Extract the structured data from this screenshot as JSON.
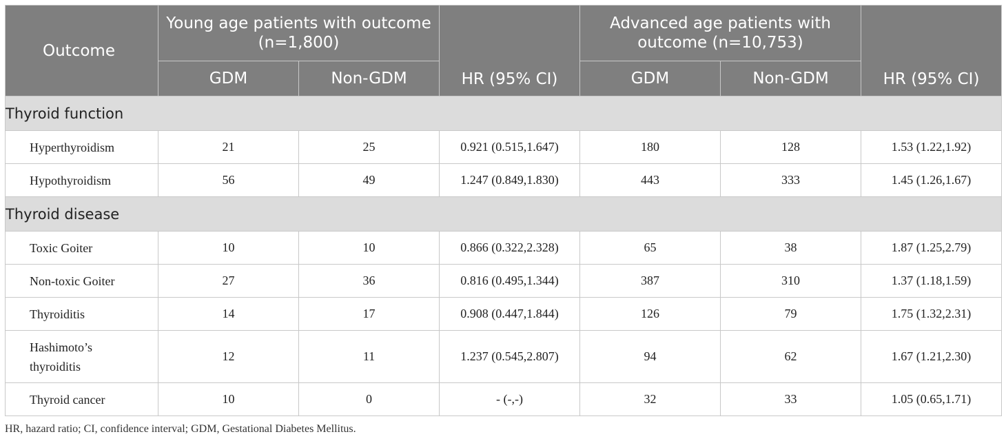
{
  "header": {
    "outcome": "Outcome",
    "young_group": "Young age patients with outcome (n=1,800)",
    "advanced_group": "Advanced age patients with outcome (n=10,753)",
    "gdm": "GDM",
    "non_gdm": "Non-GDM",
    "hr": "HR (95% CI)"
  },
  "sections": {
    "thyroid_function": "Thyroid function",
    "thyroid_disease": "Thyroid disease"
  },
  "rows": [
    {
      "outcome": "Hyperthyroidism",
      "young_gdm": "21",
      "young_non_gdm": "25",
      "young_hr": "0.921 (0.515,1.647)",
      "adv_gdm": "180",
      "adv_non_gdm": "128",
      "adv_hr": "1.53 (1.22,1.92)"
    },
    {
      "outcome": "Hypothyroidism",
      "young_gdm": "56",
      "young_non_gdm": "49",
      "young_hr": "1.247 (0.849,1.830)",
      "adv_gdm": "443",
      "adv_non_gdm": "333",
      "adv_hr": "1.45 (1.26,1.67)"
    },
    {
      "outcome": "Toxic Goiter",
      "young_gdm": "10",
      "young_non_gdm": "10",
      "young_hr": "0.866 (0.322,2.328)",
      "adv_gdm": "65",
      "adv_non_gdm": "38",
      "adv_hr": "1.87 (1.25,2.79)"
    },
    {
      "outcome": "Non-toxic Goiter",
      "young_gdm": "27",
      "young_non_gdm": "36",
      "young_hr": "0.816 (0.495,1.344)",
      "adv_gdm": "387",
      "adv_non_gdm": "310",
      "adv_hr": "1.37 (1.18,1.59)"
    },
    {
      "outcome": "Thyroiditis",
      "young_gdm": "14",
      "young_non_gdm": "17",
      "young_hr": "0.908 (0.447,1.844)",
      "adv_gdm": "126",
      "adv_non_gdm": "79",
      "adv_hr": "1.75 (1.32,2.31)"
    },
    {
      "outcome": "Hashimoto’s thyroiditis",
      "young_gdm": "12",
      "young_non_gdm": "11",
      "young_hr": "1.237 (0.545,2.807)",
      "adv_gdm": "94",
      "adv_non_gdm": "62",
      "adv_hr": "1.67 (1.21,2.30)"
    },
    {
      "outcome": "Thyroid cancer",
      "young_gdm": "10",
      "young_non_gdm": "0",
      "young_hr": "- (-,-)",
      "adv_gdm": "32",
      "adv_non_gdm": "33",
      "adv_hr": "1.05 (0.65,1.71)"
    }
  ],
  "footnote": "HR, hazard ratio; CI, confidence interval; GDM, Gestational Diabetes Mellitus."
}
